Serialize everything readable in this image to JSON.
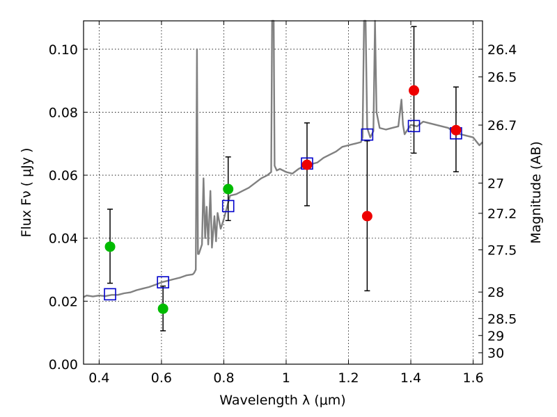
{
  "chart_data": {
    "type": "scatter",
    "xlabel": "Wavelength  λ (μm)",
    "ylabel": "Flux  Fν  ( μJy )",
    "y2label": "Magnitude (AB)",
    "xlim": [
      0.35,
      1.63
    ],
    "ylim": [
      0.0,
      0.109
    ],
    "grid": true,
    "x_ticks": [
      0.4,
      0.6,
      0.8,
      1.0,
      1.2,
      1.4,
      1.6
    ],
    "x_tick_labels": [
      "0.4",
      "0.6",
      "0.8",
      "1",
      "1.2",
      "1.4",
      "1.6"
    ],
    "y_ticks": [
      0.0,
      0.02,
      0.04,
      0.06,
      0.08,
      0.1
    ],
    "y_tick_labels": [
      "0.00",
      "0.02",
      "0.04",
      "0.06",
      "0.08",
      "0.10"
    ],
    "y2_ticks": [
      {
        "label": "26.4",
        "flux": 0.1
      },
      {
        "label": "26.5",
        "flux": 0.0912
      },
      {
        "label": "26.7",
        "flux": 0.0759
      },
      {
        "label": "27",
        "flux": 0.0575
      },
      {
        "label": "27.2",
        "flux": 0.0479
      },
      {
        "label": "27.5",
        "flux": 0.0363
      },
      {
        "label": "28",
        "flux": 0.0229
      },
      {
        "label": "28.5",
        "flux": 0.0145
      },
      {
        "label": "29",
        "flux": 0.0091
      },
      {
        "label": "30",
        "flux": 0.0036
      }
    ],
    "series": [
      {
        "kind": "model-spectrum",
        "color": "#808080",
        "points": [
          [
            0.35,
            0.0213
          ],
          [
            0.36,
            0.0218
          ],
          [
            0.38,
            0.0215
          ],
          [
            0.4,
            0.0218
          ],
          [
            0.42,
            0.0216
          ],
          [
            0.44,
            0.022
          ],
          [
            0.46,
            0.022
          ],
          [
            0.48,
            0.0225
          ],
          [
            0.5,
            0.0228
          ],
          [
            0.52,
            0.0235
          ],
          [
            0.54,
            0.024
          ],
          [
            0.56,
            0.0245
          ],
          [
            0.58,
            0.0252
          ],
          [
            0.6,
            0.026
          ],
          [
            0.62,
            0.0265
          ],
          [
            0.64,
            0.027
          ],
          [
            0.66,
            0.0275
          ],
          [
            0.68,
            0.0282
          ],
          [
            0.7,
            0.0285
          ],
          [
            0.705,
            0.029
          ],
          [
            0.71,
            0.03
          ],
          [
            0.714,
            0.1
          ],
          [
            0.717,
            0.035
          ],
          [
            0.72,
            0.035
          ],
          [
            0.73,
            0.038
          ],
          [
            0.735,
            0.059
          ],
          [
            0.74,
            0.04
          ],
          [
            0.745,
            0.05
          ],
          [
            0.75,
            0.038
          ],
          [
            0.757,
            0.055
          ],
          [
            0.762,
            0.037
          ],
          [
            0.77,
            0.047
          ],
          [
            0.775,
            0.039
          ],
          [
            0.78,
            0.048
          ],
          [
            0.79,
            0.043
          ],
          [
            0.8,
            0.046
          ],
          [
            0.82,
            0.0535
          ],
          [
            0.84,
            0.054
          ],
          [
            0.86,
            0.055
          ],
          [
            0.88,
            0.056
          ],
          [
            0.9,
            0.0575
          ],
          [
            0.92,
            0.059
          ],
          [
            0.94,
            0.06
          ],
          [
            0.952,
            0.061
          ],
          [
            0.955,
            0.109
          ],
          [
            0.96,
            0.109
          ],
          [
            0.963,
            0.063
          ],
          [
            0.97,
            0.0615
          ],
          [
            0.98,
            0.062
          ],
          [
            1.0,
            0.061
          ],
          [
            1.02,
            0.0605
          ],
          [
            1.04,
            0.062
          ],
          [
            1.06,
            0.063
          ],
          [
            1.08,
            0.0635
          ],
          [
            1.1,
            0.064
          ],
          [
            1.12,
            0.0655
          ],
          [
            1.14,
            0.0665
          ],
          [
            1.16,
            0.0675
          ],
          [
            1.18,
            0.069
          ],
          [
            1.2,
            0.0695
          ],
          [
            1.22,
            0.07
          ],
          [
            1.24,
            0.0705
          ],
          [
            1.245,
            0.072
          ],
          [
            1.25,
            0.109
          ],
          [
            1.255,
            0.109
          ],
          [
            1.26,
            0.075
          ],
          [
            1.27,
            0.072
          ],
          [
            1.28,
            0.074
          ],
          [
            1.285,
            0.109
          ],
          [
            1.29,
            0.08
          ],
          [
            1.3,
            0.075
          ],
          [
            1.32,
            0.0745
          ],
          [
            1.34,
            0.075
          ],
          [
            1.36,
            0.0755
          ],
          [
            1.37,
            0.084
          ],
          [
            1.375,
            0.076
          ],
          [
            1.38,
            0.073
          ],
          [
            1.4,
            0.076
          ],
          [
            1.42,
            0.0755
          ],
          [
            1.44,
            0.077
          ],
          [
            1.46,
            0.0765
          ],
          [
            1.48,
            0.076
          ],
          [
            1.5,
            0.0755
          ],
          [
            1.52,
            0.075
          ],
          [
            1.54,
            0.0735
          ],
          [
            1.56,
            0.073
          ],
          [
            1.58,
            0.0725
          ],
          [
            1.6,
            0.072
          ],
          [
            1.62,
            0.0695
          ],
          [
            1.63,
            0.0705
          ]
        ]
      },
      {
        "kind": "model-band-flux",
        "marker": "open-square",
        "color": "#0000cc",
        "points": [
          [
            0.435,
            0.0222
          ],
          [
            0.605,
            0.026
          ],
          [
            0.814,
            0.0502
          ],
          [
            1.067,
            0.0637
          ],
          [
            1.26,
            0.0729
          ],
          [
            1.41,
            0.0756
          ],
          [
            1.545,
            0.0733
          ]
        ]
      },
      {
        "kind": "observed-optical",
        "marker": "filled-circle",
        "color": "#00bb00",
        "points": [
          {
            "x": 0.435,
            "y": 0.0373,
            "yerr": [
              0.0257,
              0.0492
            ]
          },
          {
            "x": 0.605,
            "y": 0.0176,
            "yerr": [
              0.0106,
              0.0248
            ]
          },
          {
            "x": 0.814,
            "y": 0.0556,
            "yerr": [
              0.0456,
              0.0658
            ]
          }
        ]
      },
      {
        "kind": "observed-near-ir",
        "marker": "filled-circle",
        "color": "#ee0000",
        "points": [
          {
            "x": 1.067,
            "y": 0.0633,
            "yerr": [
              0.0503,
              0.0766
            ]
          },
          {
            "x": 1.26,
            "y": 0.047,
            "yerr": [
              0.0233,
              0.0709
            ]
          },
          {
            "x": 1.41,
            "y": 0.0869,
            "yerr": [
              0.067,
              0.1072
            ]
          },
          {
            "x": 1.545,
            "y": 0.0743,
            "yerr": [
              0.0611,
              0.088
            ]
          }
        ]
      }
    ]
  }
}
